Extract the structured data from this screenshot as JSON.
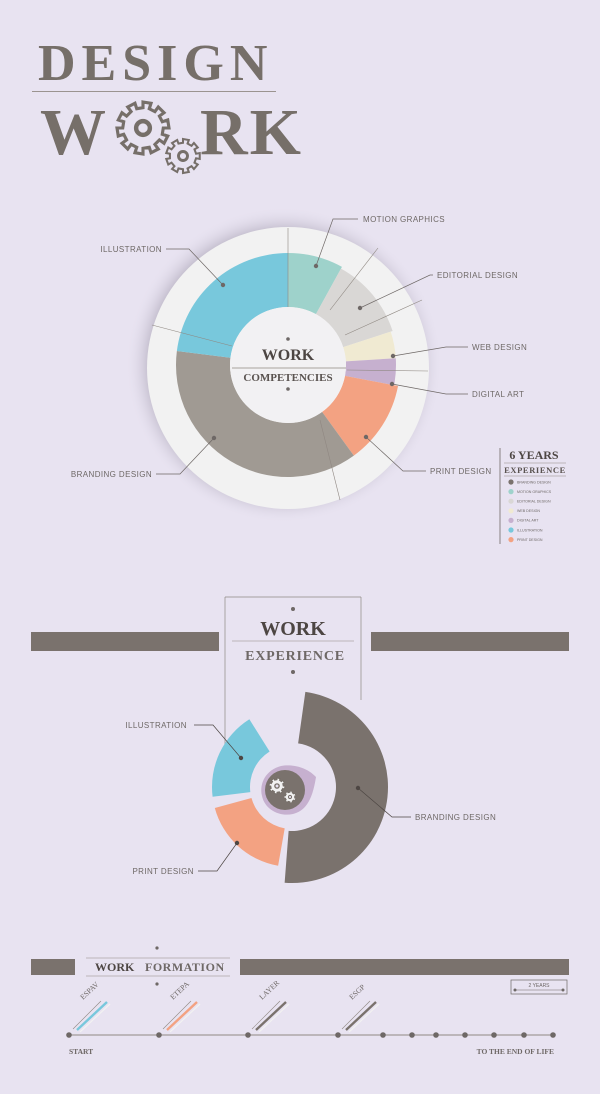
{
  "header": {
    "title_line1": "DESIGN",
    "title_line2_left": "W",
    "title_line2_right": "RK"
  },
  "competencies": {
    "center_title": "WORK",
    "center_subtitle": "COMPETENCIES"
  },
  "legend": {
    "title": "6 YEARS",
    "subtitle": "EXPERIENCE",
    "items": [
      "BRANDING DESIGN",
      "MOTION GRAPHICS",
      "EDITORIAL DESIGN",
      "WEB DESIGN",
      "DIGITAL ART",
      "ILLUSTRATION",
      "PRINT DESIGN"
    ]
  },
  "experience": {
    "title": "WORK",
    "subtitle": "EXPERIENCE"
  },
  "formation": {
    "title_left": "WORK",
    "title_right": "FORMATION",
    "scale_label": "2 YEARS",
    "start_label": "START",
    "end_label": "TO THE END OF LIFE",
    "milestones": [
      "ESPAV",
      "ETEPA",
      "LAYER",
      "ESGP"
    ]
  },
  "colors": {
    "background": "#e8e3f1",
    "branding": "#a09a93",
    "motion": "#9ed2cb",
    "editorial": "#d9d7d5",
    "web": "#f0ead2",
    "digital": "#c6b0cf",
    "illustration": "#78c8dc",
    "print": "#f3a282",
    "dark": "#7a726d"
  },
  "chart_data": [
    {
      "type": "pie",
      "title": "WORK COMPETENCIES",
      "categories": [
        "MOTION GRAPHICS",
        "EDITORIAL DESIGN",
        "WEB DESIGN",
        "DIGITAL ART",
        "PRINT DESIGN",
        "BRANDING DESIGN",
        "ILLUSTRATION"
      ],
      "values": [
        8,
        12,
        4,
        4,
        12,
        37,
        23
      ],
      "colors": [
        "#9ed2cb",
        "#d9d7d5",
        "#f0ead2",
        "#c6b0cf",
        "#f3a282",
        "#a09a93",
        "#78c8dc"
      ]
    },
    {
      "type": "pie",
      "title": "WORK EXPERIENCE",
      "categories": [
        "BRANDING DESIGN",
        "PRINT DESIGN",
        "ILLUSTRATION"
      ],
      "values": [
        49,
        18,
        18
      ],
      "colors": [
        "#7a726d",
        "#f3a282",
        "#78c8dc"
      ]
    }
  ]
}
